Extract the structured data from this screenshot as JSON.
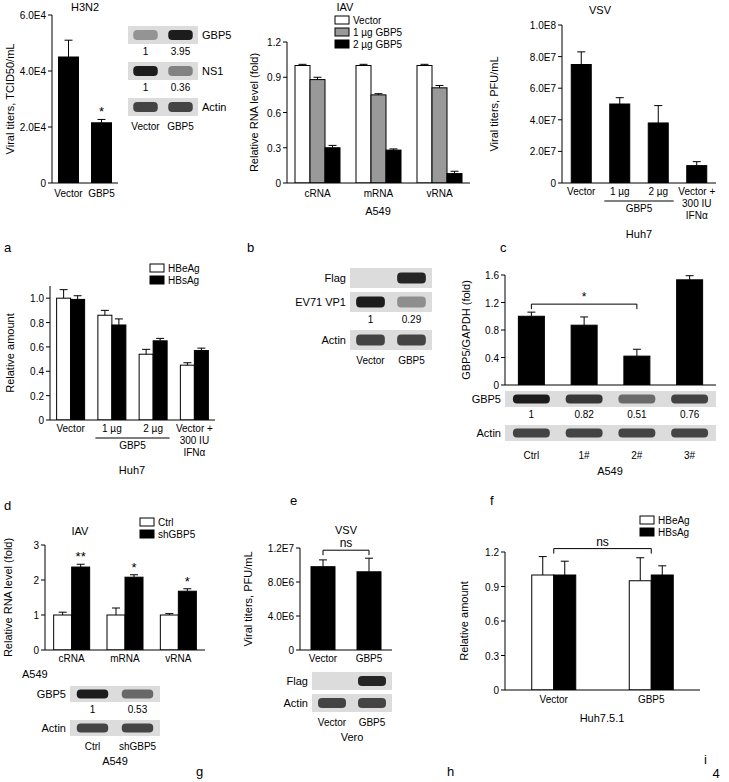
{
  "figure_number": "4",
  "chart_data": [
    {
      "panel": "a",
      "type": "bar",
      "title": "H3N2",
      "ylabel": "Viral titers, TCID50/mL",
      "categories": [
        "Vector",
        "GBP5"
      ],
      "values": [
        45000,
        21500
      ],
      "errors": [
        6000,
        1200
      ],
      "color": "#000000",
      "ylim": [
        0,
        60000
      ],
      "yticks": [
        0,
        {
          "value": 20000,
          "label": "2.0E4"
        },
        {
          "value": 40000,
          "label": "4.0E4"
        },
        {
          "value": 60000,
          "label": "6.0E4"
        }
      ],
      "annotations": [
        {
          "text": "*",
          "at": "GBP5"
        }
      ],
      "blot": {
        "lanes": [
          "Vector",
          "GBP5"
        ],
        "rows": [
          {
            "label": "GBP5",
            "values": [
              1,
              3.95
            ]
          },
          {
            "label": "NS1",
            "values": [
              1,
              0.36
            ]
          },
          {
            "label": "Actin"
          }
        ]
      }
    },
    {
      "panel": "b",
      "type": "bar",
      "title": "IAV",
      "ylabel": "Relative RNA level (fold)",
      "xlabel": "A549",
      "categories": [
        "cRNA",
        "mRNA",
        "vRNA"
      ],
      "series": [
        {
          "name": "Vector",
          "color": "#ffffff",
          "values": [
            1,
            1,
            1
          ],
          "errors": [
            0.01,
            0.01,
            0.01
          ]
        },
        {
          "name": "1 µg GBP5",
          "color": "#999999",
          "values": [
            0.88,
            0.75,
            0.81
          ],
          "errors": [
            0.02,
            0.01,
            0.02
          ]
        },
        {
          "name": "2 µg GBP5",
          "color": "#000000",
          "values": [
            0.3,
            0.28,
            0.08
          ],
          "errors": [
            0.02,
            0.01,
            0.02
          ]
        }
      ],
      "ylim": [
        0,
        1.2
      ],
      "yticks": [
        0,
        0.3,
        0.6,
        0.9,
        1.2
      ],
      "legend": "top"
    },
    {
      "panel": "c",
      "type": "bar",
      "title": "VSV",
      "ylabel": "Viral titers, PFU/mL",
      "xlabel": "Huh7",
      "categories": [
        "Vector",
        "1 µg",
        "2 µg",
        "Vector + 300 IU IFNα"
      ],
      "category_groups": [
        {
          "label": "GBP5",
          "categories": [
            "1 µg",
            "2 µg"
          ]
        }
      ],
      "values": [
        75000000,
        50000000,
        38000000,
        11000000
      ],
      "errors": [
        8000000,
        4000000,
        11000000,
        2500000
      ],
      "color": "#000000",
      "ylim": [
        0,
        100000000
      ],
      "yticks": [
        0,
        {
          "value": 20000000,
          "label": "2.0E7"
        },
        {
          "value": 40000000,
          "label": "4.0E7"
        },
        {
          "value": 60000000,
          "label": "6.0E7"
        },
        {
          "value": 80000000,
          "label": "8.0E7"
        },
        {
          "value": 100000000,
          "label": "1.0E8"
        }
      ]
    },
    {
      "panel": "d",
      "type": "bar",
      "ylabel": "Relative amount",
      "xlabel": "Huh7",
      "categories": [
        "Vector",
        "1 µg",
        "2 µg",
        "Vector + 300 IU IFNα"
      ],
      "category_groups": [
        {
          "label": "GBP5",
          "categories": [
            "1 µg",
            "2 µg"
          ]
        }
      ],
      "series": [
        {
          "name": "HBeAg",
          "color": "#ffffff",
          "values": [
            1.0,
            0.86,
            0.54,
            0.45
          ],
          "errors": [
            0.07,
            0.04,
            0.04,
            0.02
          ]
        },
        {
          "name": "HBsAg",
          "color": "#000000",
          "values": [
            0.99,
            0.78,
            0.65,
            0.57
          ],
          "errors": [
            0.03,
            0.05,
            0.02,
            0.02
          ]
        }
      ],
      "ylim": [
        0,
        1.1
      ],
      "yticks": [
        0,
        0.2,
        0.4,
        0.6,
        0.8,
        {
          "value": 1,
          "label": "1.0"
        }
      ],
      "legend": "top-right"
    },
    {
      "panel": "e",
      "type": "blot",
      "lanes": [
        "Vector",
        "GBP5"
      ],
      "rows": [
        {
          "label": "Flag",
          "bands": [
            false,
            true
          ]
        },
        {
          "label": "EV71 VP1",
          "values": [
            1,
            0.29
          ]
        },
        {
          "label": "Actin"
        }
      ]
    },
    {
      "panel": "f",
      "type": "bar",
      "ylabel": "GBP5/GAPDH (fold)",
      "xlabel": "A549",
      "categories": [
        "Ctrl",
        "1#",
        "2#",
        "3#"
      ],
      "values": [
        1,
        0.87,
        0.42,
        1.53
      ],
      "errors": [
        0.06,
        0.12,
        0.1,
        0.06
      ],
      "color": "#000000",
      "ylim": [
        0,
        1.6
      ],
      "yticks": [
        0,
        0.4,
        0.8,
        1.2,
        1.6
      ],
      "annotations": [
        {
          "text": "*",
          "from": "Ctrl",
          "to": "2#"
        }
      ],
      "blot": {
        "rows": [
          {
            "label": "GBP5",
            "values": [
              1,
              0.82,
              0.51,
              0.76
            ]
          },
          {
            "label": "Actin"
          }
        ]
      }
    },
    {
      "panel": "g",
      "type": "bar",
      "title": "IAV",
      "ylabel": "Relative RNA level (fold)",
      "xlabel": "A549",
      "categories": [
        "cRNA",
        "mRNA",
        "vRNA"
      ],
      "series": [
        {
          "name": "Ctrl",
          "color": "#ffffff",
          "values": [
            1,
            1,
            1
          ],
          "errors": [
            0.08,
            0.2,
            0.04
          ]
        },
        {
          "name": "shGBP5",
          "color": "#000000",
          "values": [
            2.37,
            2.08,
            1.68
          ],
          "errors": [
            0.08,
            0.07,
            0.07
          ]
        }
      ],
      "ylim": [
        0,
        3
      ],
      "yticks": [
        0,
        1,
        2,
        3
      ],
      "legend": "top-right",
      "annotations": [
        {
          "text": "**",
          "at": "cRNA",
          "series": "shGBP5"
        },
        {
          "text": "*",
          "at": "mRNA",
          "series": "shGBP5"
        },
        {
          "text": "*",
          "at": "vRNA",
          "series": "shGBP5"
        }
      ],
      "blot": {
        "lanes": [
          "Ctrl",
          "shGBP5"
        ],
        "cell": "A549",
        "rows": [
          {
            "label": "GBP5",
            "values": [
              1,
              0.53
            ]
          },
          {
            "label": "Actin"
          }
        ]
      }
    },
    {
      "panel": "h",
      "type": "bar",
      "title": "VSV",
      "ylabel": "Viral titers, PFU/mL",
      "categories": [
        "Vector",
        "GBP5"
      ],
      "values": [
        9800000,
        9200000
      ],
      "errors": [
        800000,
        1600000
      ],
      "color": "#000000",
      "ylim": [
        0,
        12000000
      ],
      "yticks": [
        0,
        {
          "value": 4000000,
          "label": "4.0E6"
        },
        {
          "value": 8000000,
          "label": "8.0E6"
        },
        {
          "value": 12000000,
          "label": "1.2E7"
        }
      ],
      "annotations": [
        {
          "text": "ns",
          "from": "Vector",
          "to": "GBP5"
        }
      ],
      "blot": {
        "lanes": [
          "Vector",
          "GBP5"
        ],
        "cell": "Vero",
        "rows": [
          {
            "label": "Flag",
            "bands": [
              false,
              true
            ]
          },
          {
            "label": "Actin"
          }
        ]
      }
    },
    {
      "panel": "i",
      "type": "bar",
      "ylabel": "Relative amount",
      "xlabel": "Huh7.5.1",
      "categories": [
        "Vector",
        "GBP5"
      ],
      "series": [
        {
          "name": "HBeAg",
          "color": "#ffffff",
          "values": [
            1.0,
            0.95
          ],
          "errors": [
            0.16,
            0.2
          ]
        },
        {
          "name": "HBsAg",
          "color": "#000000",
          "values": [
            1.0,
            1.0
          ],
          "errors": [
            0.12,
            0.08
          ]
        }
      ],
      "ylim": [
        0,
        1.2
      ],
      "yticks": [
        0,
        0.3,
        0.6,
        0.9,
        1.2
      ],
      "legend": "top-right",
      "annotations": [
        {
          "text": "ns",
          "from": "Vector",
          "to": "GBP5"
        }
      ]
    }
  ]
}
